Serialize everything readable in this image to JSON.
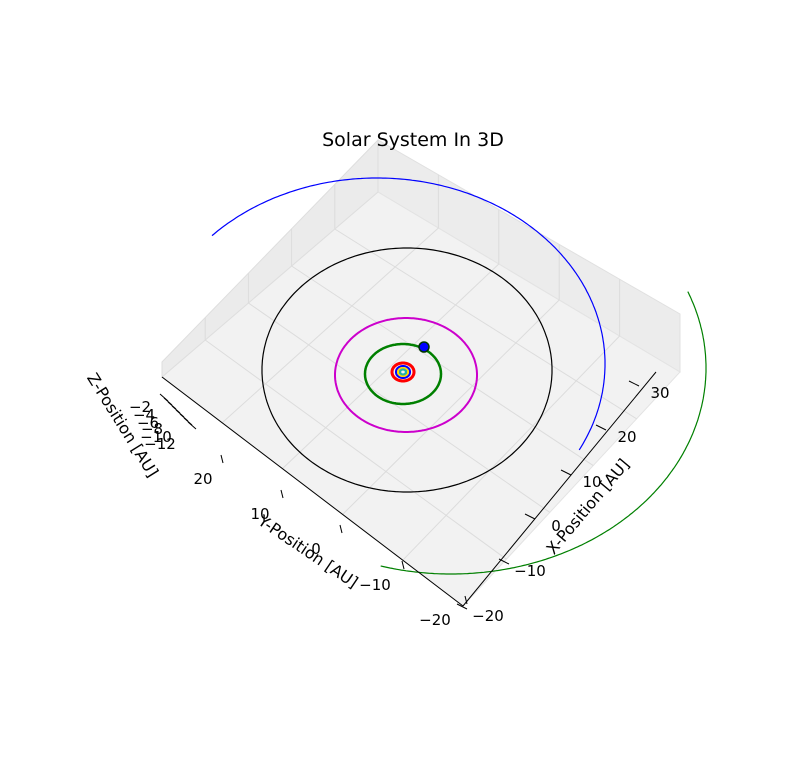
{
  "chart_data": {
    "type": "line",
    "projection": "3d",
    "title": "Solar System In 3D",
    "xlabel": "X-Position [AU]",
    "ylabel": "Y-Position [AU]",
    "zlabel": "Z-Position [AU]",
    "x_ticks": [
      "−20",
      "−10",
      "0",
      "10",
      "20",
      "30"
    ],
    "y_ticks": [
      "20",
      "10",
      "0",
      "−10",
      "−20"
    ],
    "z_ticks": [
      "−2",
      "−4",
      "−6",
      "−8",
      "−10",
      "−12"
    ],
    "grid": true,
    "series": [
      {
        "color": "#0000ff",
        "semi_major_au": 39.5,
        "style": "partial-orbit"
      },
      {
        "color": "#008000",
        "semi_major_au": 30.1,
        "style": "partial-orbit"
      },
      {
        "color": "#000000",
        "semi_major_au": 19.2,
        "style": "orbit"
      },
      {
        "color": "#cc00cc",
        "semi_major_au": 9.5,
        "style": "orbit"
      },
      {
        "color": "#008000",
        "semi_major_au": 5.2,
        "style": "orbit"
      },
      {
        "color": "#ff0000",
        "semi_major_au": 1.5,
        "style": "orbit"
      },
      {
        "color": "#0000ff",
        "semi_major_au": 1.0,
        "style": "orbit"
      },
      {
        "color": "#ffd700",
        "semi_major_au": 0.7,
        "style": "orbit"
      },
      {
        "color": "#20b2aa",
        "semi_major_au": 0.4,
        "style": "orbit"
      }
    ],
    "markers": [
      {
        "color": "#0000ff",
        "position": "jupiter"
      }
    ]
  }
}
